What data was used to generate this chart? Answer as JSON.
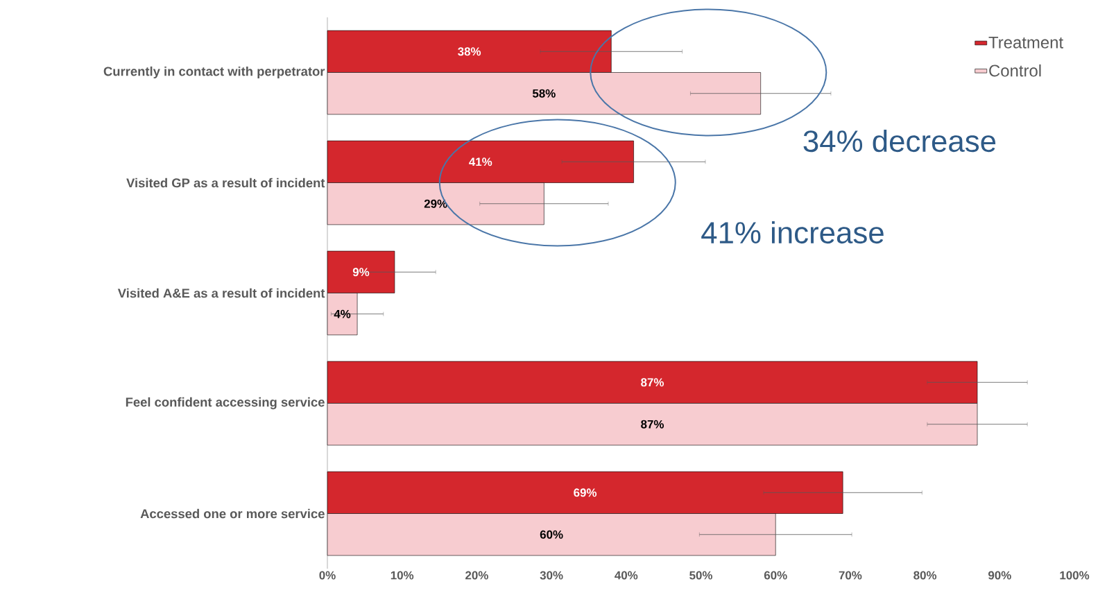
{
  "chart_data": {
    "type": "bar",
    "orientation": "horizontal",
    "categories": [
      "Currently in contact with perpetrator",
      "Visited GP as a result of incident",
      "Visited A&E as a result of incident",
      "Feel confident accessing service",
      "Accessed one or more service"
    ],
    "series": [
      {
        "name": "Treatment",
        "color": "#d4272d",
        "values": [
          38,
          41,
          9,
          87,
          69
        ],
        "value_labels": [
          "38%",
          "41%",
          "9%",
          "87%",
          "69%"
        ],
        "errors": [
          9.5,
          9.6,
          5.5,
          6.7,
          10.6
        ]
      },
      {
        "name": "Control",
        "color": "#f7ccd0",
        "values": [
          58,
          29,
          4,
          87,
          60
        ],
        "value_labels": [
          "58%",
          "29%",
          "4%",
          "87%",
          "60%"
        ],
        "errors": [
          9.4,
          8.6,
          3.5,
          6.7,
          10.2
        ]
      }
    ],
    "xlim": [
      0,
      100
    ],
    "xticks": [
      {
        "value": 0,
        "label": "0%"
      },
      {
        "value": 10,
        "label": "10%"
      },
      {
        "value": 20,
        "label": "20%"
      },
      {
        "value": 30,
        "label": "30%"
      },
      {
        "value": 40,
        "label": "40%"
      },
      {
        "value": 50,
        "label": "50%"
      },
      {
        "value": 60,
        "label": "60%"
      },
      {
        "value": 70,
        "label": "70%"
      },
      {
        "value": 80,
        "label": "80%"
      },
      {
        "value": 90,
        "label": "90%"
      },
      {
        "value": 100,
        "label": "100%"
      }
    ],
    "annotations": [
      "34% decrease",
      "41% increase"
    ],
    "legend": "top right",
    "grid": false
  }
}
